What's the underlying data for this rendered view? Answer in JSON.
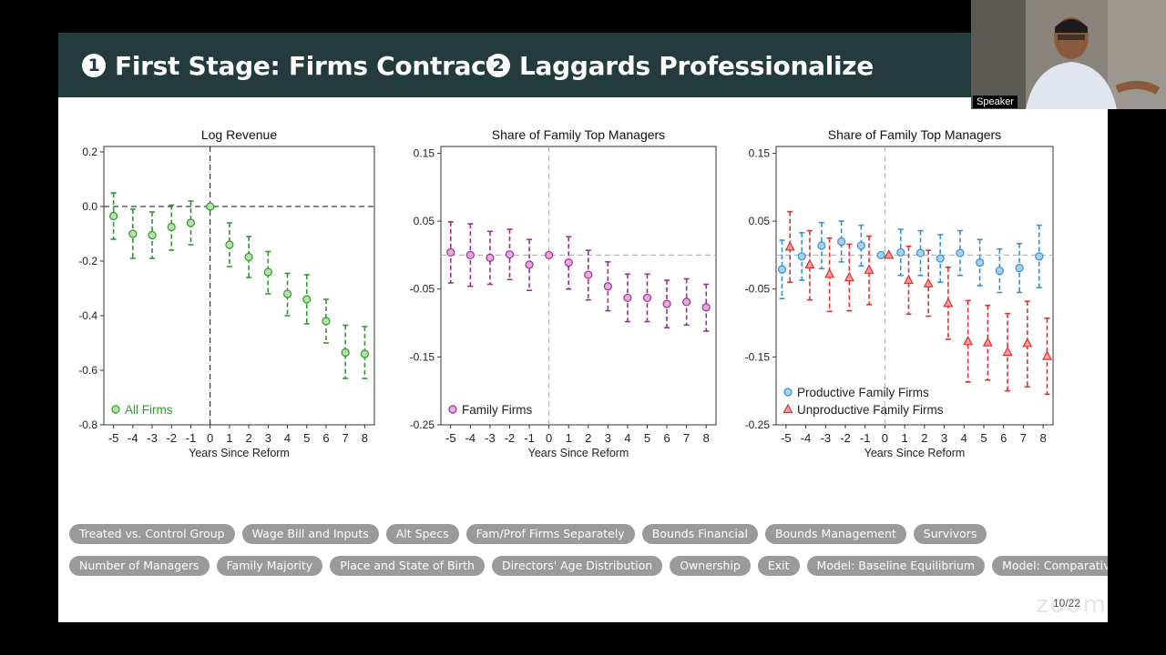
{
  "title": {
    "part1_num": "1",
    "part1_text": "First Stage: Firms Contract",
    "part2_num": "2",
    "part2_text": "Laggards Professionalize"
  },
  "speaker": {
    "label": "Speaker"
  },
  "page_number": "10/22",
  "watermark": "zoom",
  "buttons_row1": [
    "Treated vs. Control Group",
    "Wage Bill and Inputs",
    "Alt Specs",
    "Fam/Prof Firms Separately",
    "Bounds Financial",
    "Bounds Management",
    "Survivors"
  ],
  "buttons_row2": [
    "Number of Managers",
    "Family Majority",
    "Place and State of Birth",
    "Directors' Age Distribution",
    "Ownership",
    "Exit",
    "Model: Baseline Equilibrium",
    "Model: Comparative Statics"
  ],
  "colors": {
    "green": "#2e9a2e",
    "purple": "#9b2f8c",
    "blue": "#3b8fd0",
    "red": "#e03030",
    "title_bg": "#243b3d"
  },
  "chart_data": [
    {
      "type": "scatter",
      "title": "Log Revenue",
      "xlabel": "Years Since Reform",
      "ylabel": "",
      "x": [
        -5,
        -4,
        -3,
        -2,
        -1,
        0,
        1,
        2,
        3,
        4,
        5,
        6,
        7,
        8
      ],
      "xlim": [
        -5.5,
        8.5
      ],
      "ylim": [
        -0.8,
        0.22
      ],
      "yticks": [
        0.2,
        0.0,
        -0.2,
        -0.4,
        -0.6,
        -0.8
      ],
      "ytick_labels": [
        "0.2",
        "0.0",
        "-0.2",
        "-0.4",
        "-0.6",
        "-0.8"
      ],
      "vline_style": "black-dashed",
      "legend_position": "bottom-left",
      "series": [
        {
          "name": "All Firms",
          "marker": "circle",
          "color": "#2e9a2e",
          "fill": "#b5e3a8",
          "values": [
            -0.035,
            -0.1,
            -0.105,
            -0.075,
            -0.06,
            0.0,
            -0.14,
            -0.185,
            -0.24,
            -0.32,
            -0.34,
            -0.42,
            -0.535,
            -0.54
          ],
          "lower": [
            -0.12,
            -0.19,
            -0.19,
            -0.16,
            -0.14,
            0.0,
            -0.22,
            -0.26,
            -0.32,
            -0.4,
            -0.43,
            -0.5,
            -0.63,
            -0.63
          ],
          "upper": [
            0.05,
            -0.01,
            -0.02,
            0.005,
            0.02,
            0.0,
            -0.06,
            -0.11,
            -0.165,
            -0.245,
            -0.25,
            -0.34,
            -0.435,
            -0.44
          ]
        }
      ]
    },
    {
      "type": "scatter",
      "title": "Share of Family Top Managers",
      "xlabel": "Years Since Reform",
      "ylabel": "",
      "x": [
        -5,
        -4,
        -3,
        -2,
        -1,
        0,
        1,
        2,
        3,
        4,
        5,
        6,
        7,
        8
      ],
      "xlim": [
        -5.5,
        8.5
      ],
      "ylim": [
        -0.25,
        0.16
      ],
      "yticks": [
        0.15,
        0.05,
        -0.05,
        -0.15,
        -0.25
      ],
      "ytick_labels": [
        "0.15",
        "0.05",
        "-0.05",
        "-0.15",
        "-0.25"
      ],
      "vline_style": "gray-dashed",
      "legend_position": "bottom-left",
      "series": [
        {
          "name": "Family Firms",
          "marker": "circle",
          "color": "#9b2f8c",
          "fill": "#e7a9de",
          "values": [
            0.004,
            0.0,
            -0.004,
            0.001,
            -0.014,
            0.0,
            -0.011,
            -0.029,
            -0.046,
            -0.063,
            -0.063,
            -0.072,
            -0.069,
            -0.077
          ],
          "lower": [
            -0.041,
            -0.046,
            -0.043,
            -0.036,
            -0.052,
            0.0,
            -0.05,
            -0.066,
            -0.082,
            -0.098,
            -0.098,
            -0.107,
            -0.103,
            -0.112
          ],
          "upper": [
            0.049,
            0.046,
            0.035,
            0.038,
            0.023,
            0.0,
            0.027,
            0.007,
            -0.01,
            -0.028,
            -0.028,
            -0.037,
            -0.035,
            -0.043
          ]
        }
      ]
    },
    {
      "type": "scatter",
      "title": "Share of Family Top Managers",
      "xlabel": "Years Since Reform",
      "ylabel": "",
      "x": [
        -5,
        -4,
        -3,
        -2,
        -1,
        0,
        1,
        2,
        3,
        4,
        5,
        6,
        7,
        8
      ],
      "xlim": [
        -5.5,
        8.5
      ],
      "ylim": [
        -0.25,
        0.16
      ],
      "yticks": [
        0.15,
        0.05,
        -0.05,
        -0.15,
        -0.25
      ],
      "ytick_labels": [
        "0.15",
        "0.05",
        "-0.05",
        "-0.15",
        "-0.25"
      ],
      "vline_style": "blue-dashed",
      "legend_position": "bottom-left",
      "series": [
        {
          "name": "Productive Family Firms",
          "marker": "circle",
          "color": "#3b8fd0",
          "fill": "#a7cfee",
          "offset": -0.2,
          "values": [
            -0.021,
            -0.002,
            0.014,
            0.02,
            0.014,
            0.0,
            0.004,
            0.003,
            -0.005,
            0.003,
            -0.011,
            -0.023,
            -0.019,
            -0.002
          ],
          "lower": [
            -0.064,
            -0.037,
            -0.02,
            -0.01,
            -0.016,
            0.0,
            -0.03,
            -0.03,
            -0.04,
            -0.03,
            -0.045,
            -0.055,
            -0.055,
            -0.048
          ],
          "upper": [
            0.022,
            0.033,
            0.048,
            0.05,
            0.044,
            0.0,
            0.038,
            0.036,
            0.03,
            0.036,
            0.023,
            0.009,
            0.017,
            0.044
          ]
        },
        {
          "name": "Unproductive Family Firms",
          "marker": "triangle",
          "color": "#e03030",
          "fill": "#f5a0a0",
          "offset": 0.2,
          "values": [
            0.012,
            -0.014,
            -0.028,
            -0.033,
            -0.022,
            0.0,
            -0.037,
            -0.042,
            -0.071,
            -0.127,
            -0.129,
            -0.143,
            -0.13,
            -0.149
          ],
          "lower": [
            -0.04,
            -0.066,
            -0.083,
            -0.082,
            -0.073,
            0.0,
            -0.087,
            -0.09,
            -0.124,
            -0.187,
            -0.184,
            -0.2,
            -0.194,
            -0.205
          ],
          "upper": [
            0.064,
            0.036,
            0.025,
            0.016,
            0.028,
            0.0,
            0.013,
            0.007,
            -0.018,
            -0.067,
            -0.074,
            -0.086,
            -0.068,
            -0.093
          ]
        }
      ]
    }
  ]
}
